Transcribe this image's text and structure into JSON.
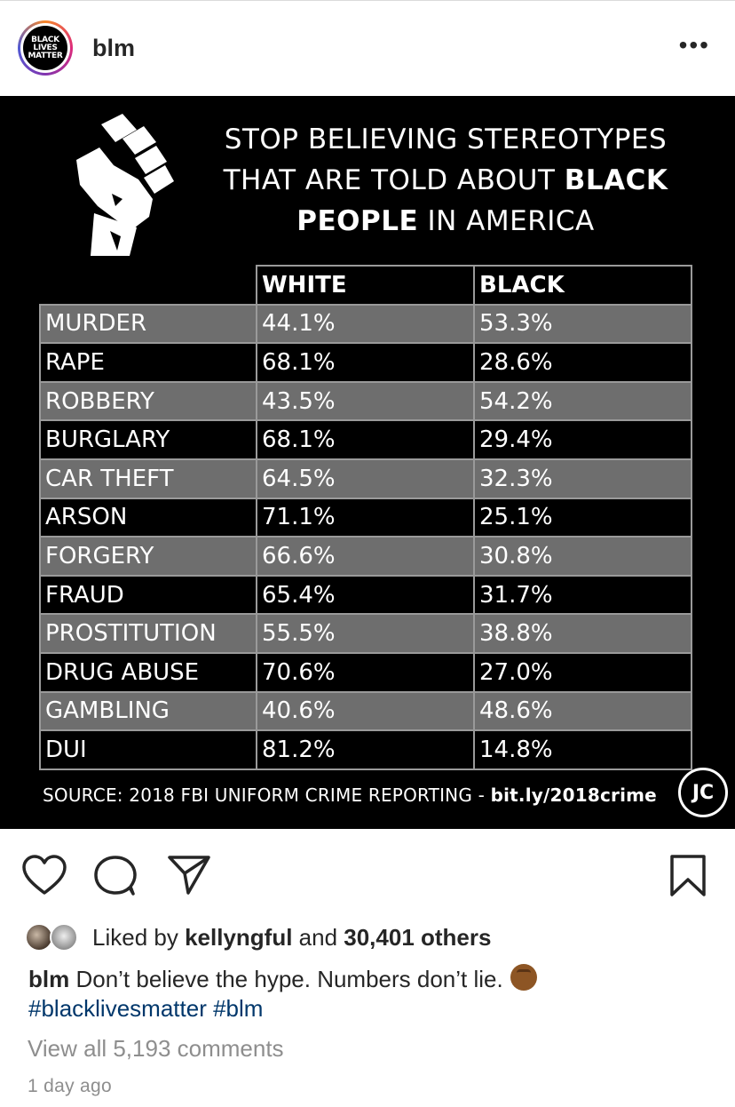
{
  "header": {
    "username": "blm",
    "avatar_text": [
      "BLACK",
      "LIVES",
      "MATTER"
    ],
    "more_label": "•••"
  },
  "post_image": {
    "headline": {
      "line1": "STOP BELIEVING STEREOTYPES",
      "line2_plain": "THAT ARE TOLD ABOUT ",
      "line2_bold": "BLACK",
      "line3_bold": "PEOPLE",
      "line3_plain": " IN AMERICA"
    },
    "columns": [
      "WHITE",
      "BLACK"
    ],
    "rows": [
      {
        "label": "MURDER",
        "white": "44.1%",
        "black": "53.3%"
      },
      {
        "label": "RAPE",
        "white": "68.1%",
        "black": "28.6%"
      },
      {
        "label": "ROBBERY",
        "white": "43.5%",
        "black": "54.2%"
      },
      {
        "label": "BURGLARY",
        "white": "68.1%",
        "black": "29.4%"
      },
      {
        "label": "CAR THEFT",
        "white": "64.5%",
        "black": "32.3%"
      },
      {
        "label": "ARSON",
        "white": "71.1%",
        "black": "25.1%"
      },
      {
        "label": "FORGERY",
        "white": "66.6%",
        "black": "30.8%"
      },
      {
        "label": "FRAUD",
        "white": "65.4%",
        "black": "31.7%"
      },
      {
        "label": "PROSTITUTION",
        "white": "55.5%",
        "black": "38.8%"
      },
      {
        "label": "DRUG ABUSE",
        "white": "70.6%",
        "black": "27.0%"
      },
      {
        "label": "GAMBLING",
        "white": "40.6%",
        "black": "48.6%"
      },
      {
        "label": "DUI",
        "white": "81.2%",
        "black": "14.8%"
      }
    ],
    "source_plain": "SOURCE: 2018 FBI UNIFORM CRIME REPORTING - ",
    "source_link": "bit.ly/2018crime",
    "logo_text": "JC"
  },
  "likes": {
    "prefix": "Liked by ",
    "user": "kellyngful",
    "middle": " and ",
    "count": "30,401 others"
  },
  "caption": {
    "username": "blm",
    "text": " Don’t believe the hype. Numbers don’t lie.",
    "hashtags": [
      "#blacklivesmatter",
      "#blm"
    ]
  },
  "view_comments": "View all 5,193 comments",
  "timestamp": "1 day ago",
  "colors": {
    "row_grey": "#6e6e6e",
    "row_dark": "#000000",
    "hashtag": "#00376b",
    "muted": "#8e8e8e"
  }
}
